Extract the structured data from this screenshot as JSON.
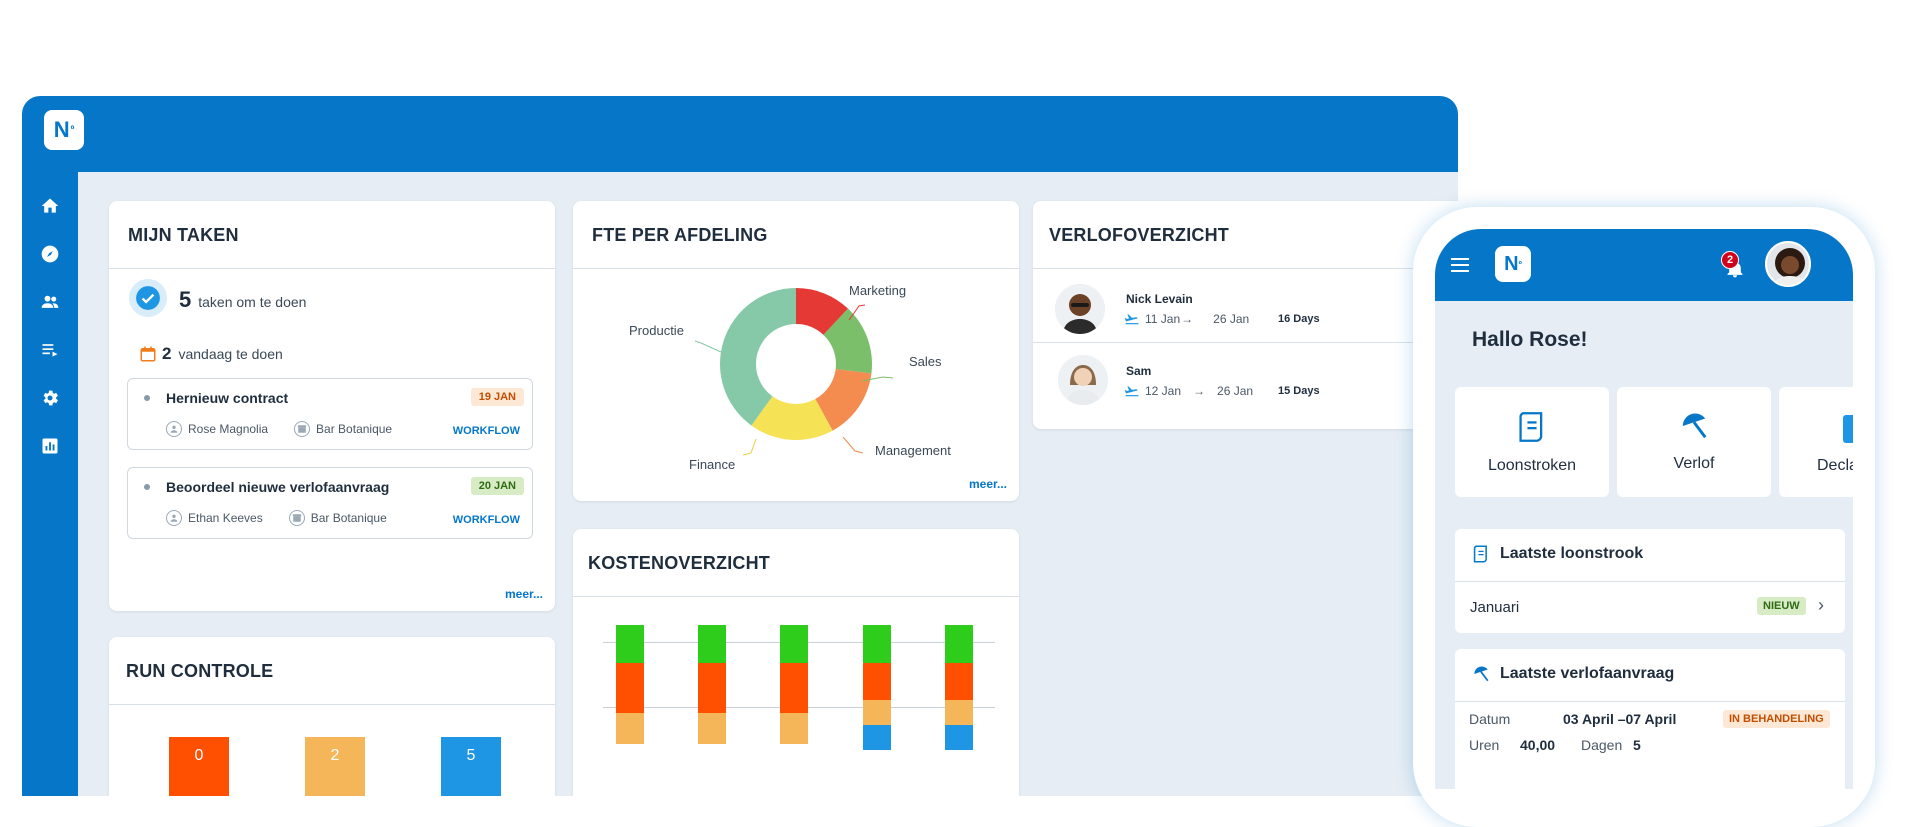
{
  "brand": {
    "logo_text": "N",
    "logo_sup": "º",
    "primary": "#0677c8"
  },
  "nav_icons": [
    "home-icon",
    "compass-icon",
    "people-icon",
    "playlist-icon",
    "gear-icon",
    "bar-chart-icon"
  ],
  "tasks_card": {
    "title": "MIJN TAKEN",
    "todo_count": "5",
    "todo_text": "taken om te doen",
    "today_count": "2",
    "today_text": "vandaag te doen",
    "items": [
      {
        "name": "Hernieuw contract",
        "date": "19 JAN",
        "person": "Rose Magnolia",
        "place": "Bar Botanique",
        "type": "WORKFLOW"
      },
      {
        "name": "Beoordeel nieuwe verlofaanvraag",
        "date": "20 JAN",
        "person": "Ethan Keeves",
        "place": "Bar Botanique",
        "type": "WORKFLOW"
      }
    ],
    "more": "meer..."
  },
  "fte_card": {
    "title": "FTE PER AFDELING",
    "more": "meer...",
    "chart_data": {
      "type": "pie",
      "categories": [
        "Marketing",
        "Sales",
        "Management",
        "Finance",
        "Productie"
      ],
      "values": [
        12,
        15,
        15,
        18,
        40
      ],
      "colors": [
        "#e53935",
        "#7cbf6b",
        "#f48c4f",
        "#f6e255",
        "#86c9a8"
      ]
    }
  },
  "run_card": {
    "title": "RUN CONTROLE",
    "chart_data": {
      "type": "bar",
      "values": [
        0,
        2,
        5
      ],
      "colors": [
        "#fe5000",
        "#f5b65a",
        "#1e96e4"
      ]
    }
  },
  "cost_card": {
    "title": "KOSTENOVERZICHT",
    "chart_data": {
      "type": "bar",
      "stacked": true,
      "series": [
        {
          "color": "#2ecc1b",
          "values": [
            30,
            30,
            30,
            30,
            30
          ]
        },
        {
          "color": "#fe5000",
          "values": [
            40,
            40,
            40,
            30,
            30
          ]
        },
        {
          "color": "#f5b65a",
          "values": [
            25,
            25,
            25,
            20,
            20
          ]
        },
        {
          "color": "#1e96e4",
          "values": [
            0,
            0,
            0,
            20,
            20
          ]
        }
      ]
    }
  },
  "leave_card": {
    "title": "VERLOFOVERZICHT",
    "rows": [
      {
        "name": "Nick Levain",
        "from": "11 Jan",
        "to": "26 Jan",
        "days": "16 Days"
      },
      {
        "name": "Sam",
        "from": "12 Jan",
        "to": "26 Jan",
        "days": "15 Days"
      }
    ]
  },
  "phone": {
    "badge": "2",
    "greeting": "Hallo Rose!",
    "tiles": [
      "Loonstroken",
      "Verlof",
      "Decla"
    ],
    "last_payslip": {
      "title": "Laatste loonstrook",
      "month": "Januari",
      "badge": "NIEUW"
    },
    "last_leave": {
      "title": "Laatste verlofaanvraag",
      "datum_label": "Datum",
      "datum_value": "03 April –07 April",
      "status": "IN BEHANDELING",
      "uren_label": "Uren",
      "uren_value": "40,00",
      "dagen_label": "Dagen",
      "dagen_value": "5"
    }
  }
}
